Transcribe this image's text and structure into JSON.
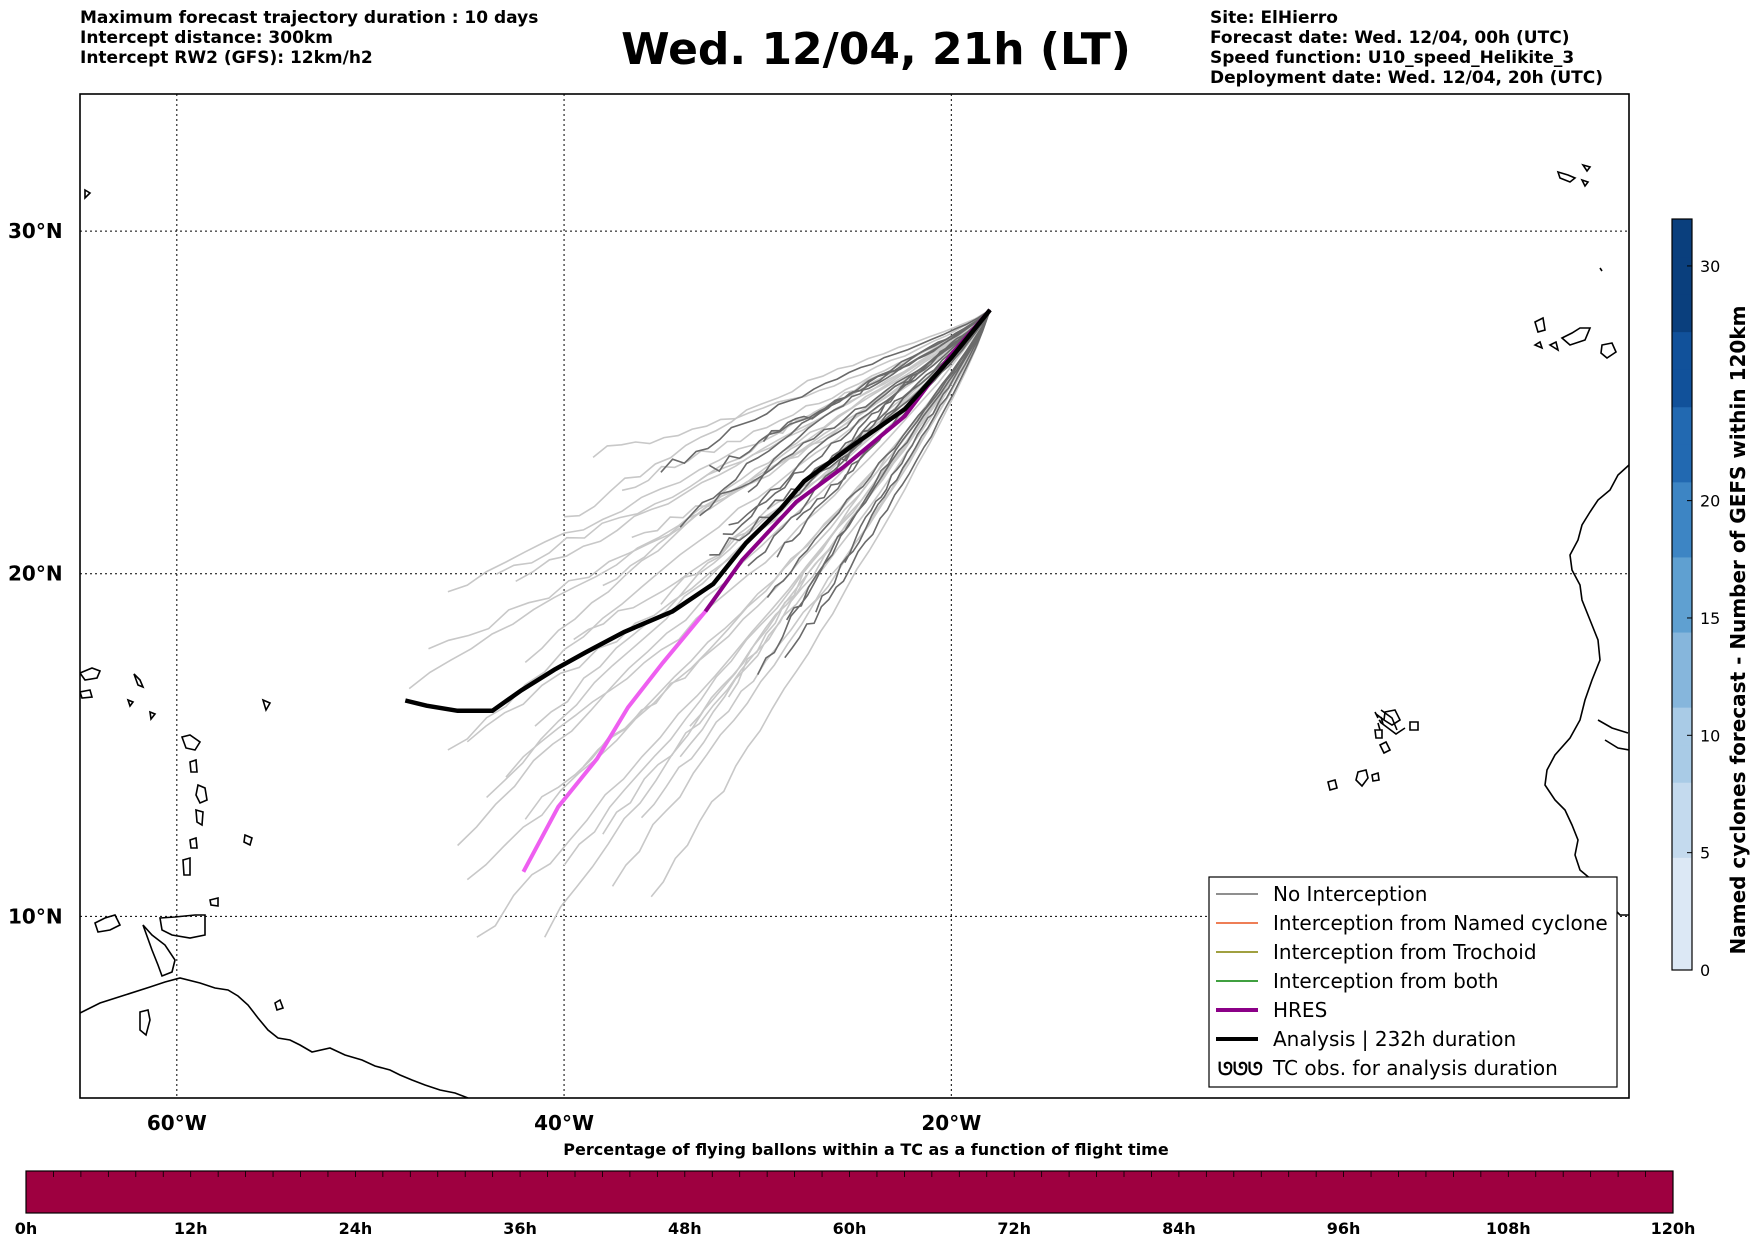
{
  "header_left": [
    "Maximum forecast trajectory duration : 10 days",
    "Intercept distance: 300km",
    "Intercept RW2 (GFS):  12km/h2"
  ],
  "title": "Wed. 12/04, 21h (LT)",
  "header_right": [
    "Site: ElHierro",
    "Forecast date: Wed. 12/04, 00h (UTC)",
    "Speed function: U10_speed_Helikite_3",
    "Deployment date: Wed. 12/04, 20h (UTC)"
  ],
  "map": {
    "lon_range": [
      -65,
      15
    ],
    "lat_range": [
      4.7,
      34
    ],
    "lon_ticks": [
      {
        "value": -60,
        "label": "60°W"
      },
      {
        "value": -40,
        "label": "40°W"
      },
      {
        "value": -20,
        "label": "20°W"
      }
    ],
    "lat_ticks": [
      {
        "value": 30,
        "label": "30°N"
      },
      {
        "value": 20,
        "label": "20°N"
      },
      {
        "value": 10,
        "label": "10°N"
      }
    ],
    "launch_site": {
      "lon": -18.0,
      "lat": 27.7
    },
    "analysis_track": [
      [
        -18.0,
        27.7
      ],
      [
        -20,
        26.3
      ],
      [
        -22.4,
        24.8
      ],
      [
        -25.2,
        23.7
      ],
      [
        -27.6,
        22.7
      ],
      [
        -28.8,
        21.9
      ],
      [
        -30.6,
        20.9
      ],
      [
        -32.3,
        19.7
      ],
      [
        -34.4,
        18.9
      ],
      [
        -36.9,
        18.3
      ],
      [
        -38.9,
        17.7
      ],
      [
        -40.5,
        17.2
      ],
      [
        -42.2,
        16.6
      ],
      [
        -43.7,
        16.0
      ],
      [
        -45.5,
        16.0
      ],
      [
        -47.1,
        16.15
      ],
      [
        -48.2,
        16.3
      ]
    ],
    "hres_track": [
      [
        -18.0,
        27.7
      ],
      [
        -20,
        26.4
      ],
      [
        -22.4,
        24.6
      ],
      [
        -25.6,
        23.1
      ],
      [
        -28.0,
        22.1
      ],
      [
        -30.8,
        20.4
      ],
      [
        -32.7,
        18.9
      ],
      [
        -34.9,
        17.4
      ],
      [
        -36.7,
        16.1
      ],
      [
        -38.3,
        14.6
      ],
      [
        -40.3,
        13.2
      ],
      [
        -42.1,
        11.3
      ]
    ],
    "colors": {
      "coast": "#000000",
      "grid": "#000000",
      "no_interception_dark": "#6a6a6a",
      "no_interception_light": "#c8c8c8",
      "named_cyclone": "#e8531e",
      "trochoid": "#808000",
      "both": "#008000",
      "hres": "#8b0087",
      "hres_extension": "#ee5ff0",
      "analysis": "#000000"
    }
  },
  "legend": [
    {
      "label": "No Interception",
      "style": "thin",
      "color": "#6a6a6a"
    },
    {
      "label": "Interception from Named cyclone",
      "style": "thin",
      "color": "#e8531e"
    },
    {
      "label": "Interception from Trochoid",
      "style": "thin",
      "color": "#808000"
    },
    {
      "label": "Interception from both",
      "style": "thin",
      "color": "#008000"
    },
    {
      "label": "HRES",
      "style": "thick",
      "color": "#8b0087"
    },
    {
      "label": "Analysis | 232h duration",
      "style": "thick",
      "color": "#000000"
    },
    {
      "label": "TC obs. for analysis duration",
      "style": "symbol",
      "color": "#000000"
    }
  ],
  "colorbar_right": {
    "label": "Named cyclones forecast - Number of GEFS within 120km",
    "ticks": [
      "0",
      "5",
      "10",
      "15",
      "20",
      "30"
    ],
    "tick_values": [
      0,
      5,
      10,
      15,
      20,
      30
    ],
    "max": 32,
    "colors": [
      "#dce8f5",
      "#c4daee",
      "#a9cbe6",
      "#86b6dc",
      "#5fa0d1",
      "#3d85c4",
      "#2269b1",
      "#11519a",
      "#0a3f7d"
    ]
  },
  "colorbar_bottom": {
    "title": "Percentage of flying ballons within a TC as a function of flight time",
    "ticks": [
      "0h",
      "12h",
      "24h",
      "36h",
      "48h",
      "60h",
      "72h",
      "84h",
      "96h",
      "108h",
      "120h"
    ],
    "fill_color": "#9e0040"
  }
}
